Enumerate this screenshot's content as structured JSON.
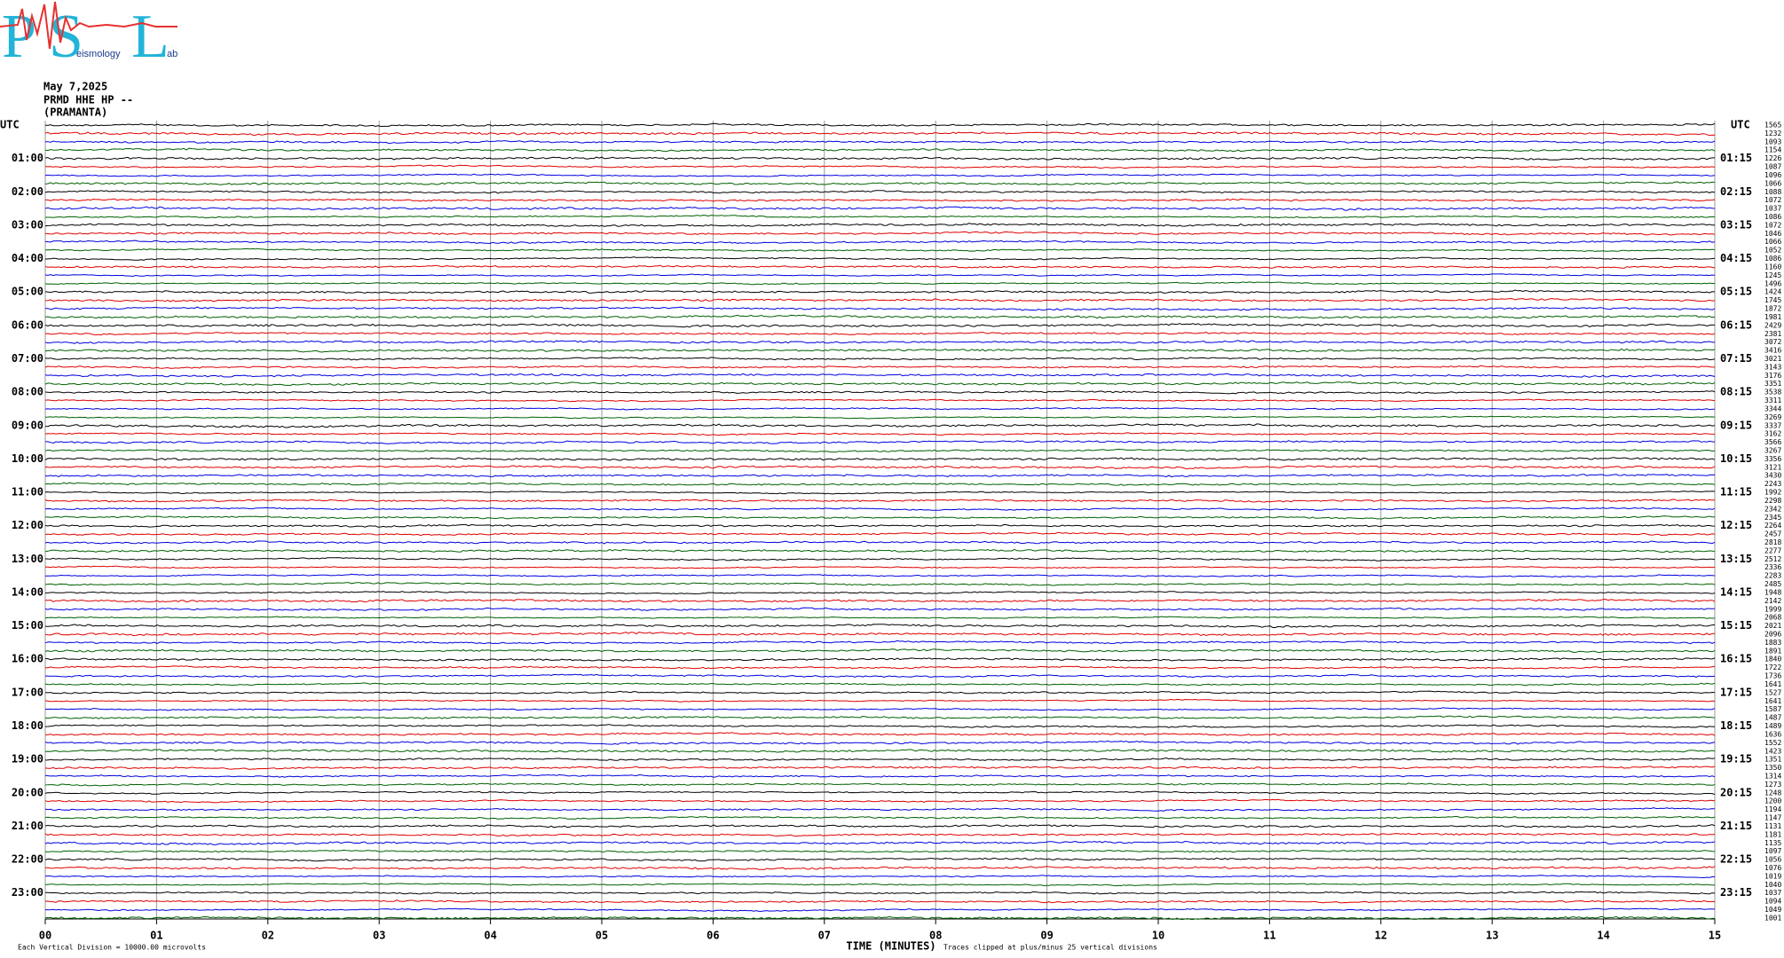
{
  "logo": {
    "letters": [
      "P",
      "S",
      "L"
    ],
    "subtexts": [
      "eismology",
      "ab"
    ]
  },
  "header": {
    "date": "May 7,2025",
    "channel": "PRMD HHE HP --",
    "station": "(PRAMANTA)"
  },
  "left_axis": {
    "title": "UTC",
    "labels": [
      "01:00",
      "02:00",
      "03:00",
      "04:00",
      "05:00",
      "06:00",
      "07:00",
      "08:00",
      "09:00",
      "10:00",
      "11:00",
      "12:00",
      "13:00",
      "14:00",
      "15:00",
      "16:00",
      "17:00",
      "18:00",
      "19:00",
      "20:00",
      "21:00",
      "22:00",
      "23:00"
    ]
  },
  "right_axis": {
    "title": "UTC",
    "labels": [
      "01:15",
      "02:15",
      "03:15",
      "04:15",
      "05:15",
      "06:15",
      "07:15",
      "08:15",
      "09:15",
      "10:15",
      "11:15",
      "12:15",
      "13:15",
      "14:15",
      "15:15",
      "16:15",
      "17:15",
      "18:15",
      "19:15",
      "20:15",
      "21:15",
      "22:15",
      "23:15"
    ]
  },
  "trace_numbers": [
    1565,
    1232,
    1093,
    1154,
    1226,
    1087,
    1096,
    1066,
    1088,
    1072,
    1037,
    1086,
    1072,
    1046,
    1066,
    1052,
    1086,
    1160,
    1245,
    1496,
    1424,
    1745,
    1872,
    1981,
    2429,
    2381,
    3072,
    3416,
    3021,
    3143,
    3176,
    3351,
    3538,
    3311,
    3344,
    3269,
    3337,
    3162,
    3566,
    3267,
    3356,
    3121,
    3430,
    2243,
    1992,
    2298,
    2342,
    2345,
    2264,
    2457,
    2818,
    2277,
    2512,
    2336,
    2283,
    2485,
    1948,
    2142,
    1999,
    2068,
    2021,
    2096,
    1883,
    1891,
    1840,
    1722,
    1736,
    1641,
    1527,
    1641,
    1587,
    1487,
    1489,
    1636,
    1552,
    1423,
    1351,
    1350,
    1314,
    1273,
    1248,
    1200,
    1194,
    1147,
    1131,
    1181,
    1135,
    1097,
    1056,
    1076,
    1019,
    1040,
    1037,
    1094,
    1049,
    1001
  ],
  "x_axis": {
    "title": "TIME (MINUTES)",
    "labels": [
      "00",
      "01",
      "02",
      "03",
      "04",
      "05",
      "06",
      "07",
      "08",
      "09",
      "10",
      "11",
      "12",
      "13",
      "14",
      "15"
    ]
  },
  "footer": {
    "scale_note": "Each Vertical Division = 10000.00 microvolts",
    "clip_note": "Traces clipped at plus/minus 25 vertical divisions"
  }
}
